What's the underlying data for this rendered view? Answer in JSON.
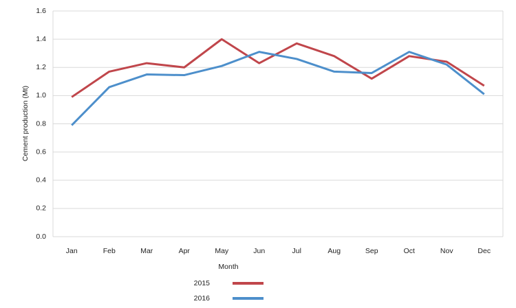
{
  "chart_data": {
    "type": "line",
    "x_label": "Month",
    "y_label": "Cement production (Mt)",
    "categories": [
      "Jan",
      "Feb",
      "Mar",
      "Apr",
      "May",
      "Jun",
      "Jul",
      "Aug",
      "Sep",
      "Oct",
      "Nov",
      "Dec"
    ],
    "series": [
      {
        "name": "2015",
        "color": "#c0464b",
        "values": [
          0.99,
          1.17,
          1.23,
          1.2,
          1.4,
          1.23,
          1.37,
          1.28,
          1.12,
          1.28,
          1.24,
          1.07
        ]
      },
      {
        "name": "2016",
        "color": "#4d8fcb",
        "values": [
          0.79,
          1.06,
          1.15,
          1.145,
          1.21,
          1.31,
          1.26,
          1.17,
          1.16,
          1.31,
          1.22,
          1.01
        ]
      }
    ],
    "ylim": [
      0,
      1.6
    ],
    "yticks": [
      {
        "value": 0,
        "label": "0.0"
      },
      0.2,
      0.4,
      0.6,
      0.8,
      {
        "value": 1,
        "label": "1.0"
      },
      1.2,
      1.4,
      1.6
    ],
    "grid": true,
    "legend": "bottom"
  }
}
